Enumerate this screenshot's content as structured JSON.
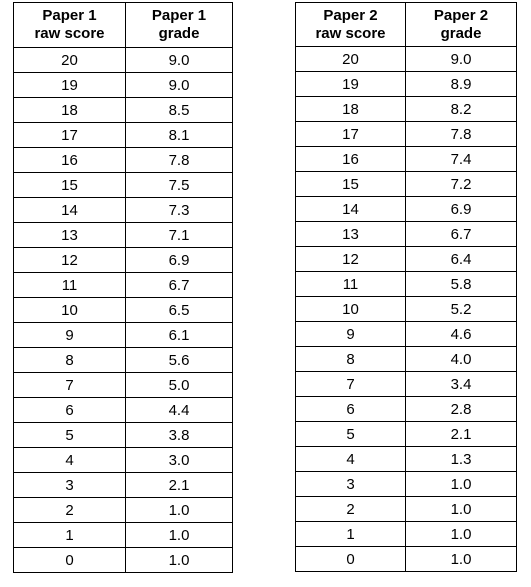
{
  "paper1": {
    "header_raw": "Paper 1\nraw score",
    "header_grade": "Paper 1\ngrade",
    "rows": [
      {
        "raw": "20",
        "grade": "9.0"
      },
      {
        "raw": "19",
        "grade": "9.0"
      },
      {
        "raw": "18",
        "grade": "8.5"
      },
      {
        "raw": "17",
        "grade": "8.1"
      },
      {
        "raw": "16",
        "grade": "7.8"
      },
      {
        "raw": "15",
        "grade": "7.5"
      },
      {
        "raw": "14",
        "grade": "7.3"
      },
      {
        "raw": "13",
        "grade": "7.1"
      },
      {
        "raw": "12",
        "grade": "6.9"
      },
      {
        "raw": "11",
        "grade": "6.7"
      },
      {
        "raw": "10",
        "grade": "6.5"
      },
      {
        "raw": "9",
        "grade": "6.1"
      },
      {
        "raw": "8",
        "grade": "5.6"
      },
      {
        "raw": "7",
        "grade": "5.0"
      },
      {
        "raw": "6",
        "grade": "4.4"
      },
      {
        "raw": "5",
        "grade": "3.8"
      },
      {
        "raw": "4",
        "grade": "3.0"
      },
      {
        "raw": "3",
        "grade": "2.1"
      },
      {
        "raw": "2",
        "grade": "1.0"
      },
      {
        "raw": "1",
        "grade": "1.0"
      },
      {
        "raw": "0",
        "grade": "1.0"
      }
    ]
  },
  "paper2": {
    "header_raw": "Paper 2\nraw score",
    "header_grade": "Paper 2\ngrade",
    "rows": [
      {
        "raw": "20",
        "grade": "9.0"
      },
      {
        "raw": "19",
        "grade": "8.9"
      },
      {
        "raw": "18",
        "grade": "8.2"
      },
      {
        "raw": "17",
        "grade": "7.8"
      },
      {
        "raw": "16",
        "grade": "7.4"
      },
      {
        "raw": "15",
        "grade": "7.2"
      },
      {
        "raw": "14",
        "grade": "6.9"
      },
      {
        "raw": "13",
        "grade": "6.7"
      },
      {
        "raw": "12",
        "grade": "6.4"
      },
      {
        "raw": "11",
        "grade": "5.8"
      },
      {
        "raw": "10",
        "grade": "5.2"
      },
      {
        "raw": "9",
        "grade": "4.6"
      },
      {
        "raw": "8",
        "grade": "4.0"
      },
      {
        "raw": "7",
        "grade": "3.4"
      },
      {
        "raw": "6",
        "grade": "2.8"
      },
      {
        "raw": "5",
        "grade": "2.1"
      },
      {
        "raw": "4",
        "grade": "1.3"
      },
      {
        "raw": "3",
        "grade": "1.0"
      },
      {
        "raw": "2",
        "grade": "1.0"
      },
      {
        "raw": "1",
        "grade": "1.0"
      },
      {
        "raw": "0",
        "grade": "1.0"
      }
    ]
  }
}
